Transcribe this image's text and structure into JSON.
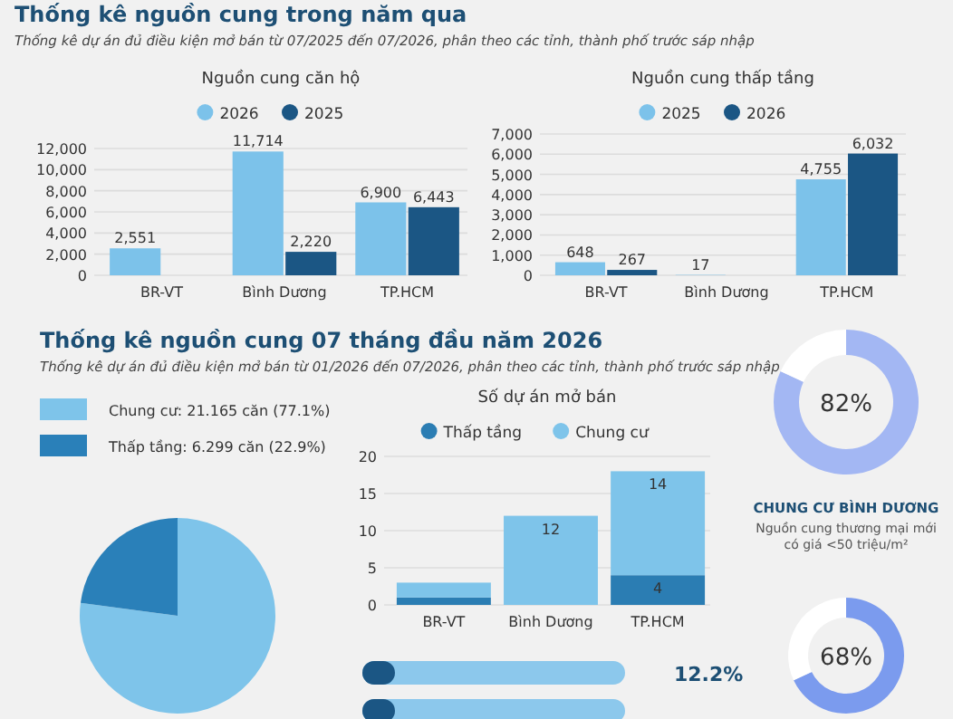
{
  "chart_data": [
    {
      "type": "bar",
      "title": "Nguồn cung căn hộ",
      "annotations": [
        "Thống kê nguồn cung trong năm qua",
        "Thống kê dự án đủ điều kiện mở bán từ 07/2025 đến 07/2026, phân theo các tỉnh, thành phố trước sáp nhập"
      ],
      "categories": [
        "BR-VT",
        "Bình Dương",
        "TP.HCM"
      ],
      "series": [
        {
          "name": "2026",
          "color": "#7cc2ea",
          "values": [
            2551,
            11714,
            6900
          ],
          "value_labels": [
            "2,551",
            "11,714",
            "6,900"
          ]
        },
        {
          "name": "2025",
          "color": "#1b5684",
          "values": [
            null,
            2220,
            6443
          ],
          "value_labels": [
            null,
            "2,220",
            "6,443"
          ]
        }
      ],
      "ylim": [
        0,
        12000
      ],
      "yticks": [
        0,
        {
          "value": 2000,
          "label": "2,000"
        },
        {
          "value": 4000,
          "label": "4,000"
        },
        {
          "value": 6000,
          "label": "6,000"
        },
        {
          "value": 8000,
          "label": "8,000"
        },
        {
          "value": 10000,
          "label": "10,000"
        },
        {
          "value": 12000,
          "label": "12,000"
        }
      ],
      "grid": "y",
      "legend": "top"
    },
    {
      "type": "bar",
      "title": "Nguồn cung thấp tầng",
      "categories": [
        "BR-VT",
        "Bình Dương",
        "TP.HCM"
      ],
      "series": [
        {
          "name": "2025",
          "color": "#7cc2ea",
          "values": [
            648,
            17,
            4755
          ],
          "value_labels": [
            "648",
            "17",
            "4,755"
          ]
        },
        {
          "name": "2026",
          "color": "#1b5684",
          "values": [
            267,
            null,
            6032
          ],
          "value_labels": [
            "267",
            null,
            "6,032"
          ]
        }
      ],
      "ylim": [
        0,
        7000
      ],
      "yticks": [
        0,
        {
          "value": 1000,
          "label": "1,000"
        },
        {
          "value": 2000,
          "label": "2,000"
        },
        {
          "value": 3000,
          "label": "3,000"
        },
        {
          "value": 4000,
          "label": "4,000"
        },
        {
          "value": 5000,
          "label": "5,000"
        },
        {
          "value": 6000,
          "label": "6,000"
        },
        {
          "value": 7000,
          "label": "7,000"
        }
      ],
      "grid": "y",
      "legend": "top"
    },
    {
      "type": "pie",
      "annotations": [
        "Thống kê nguồn cung 07 tháng đầu năm 2026",
        "Thống kê dự án đủ điều kiện mở bán từ 01/2026 đến 07/2026, phân theo các tỉnh, thành phố trước sáp nhập"
      ],
      "categories": [
        "Chung cư: 21.165 căn (77.1%)",
        "Thấp tầng: 6.299 căn (22.9%)"
      ],
      "values": [
        77.1,
        22.9
      ],
      "colors": [
        "#7ec4ea",
        "#2a80b9"
      ],
      "legend": "top"
    },
    {
      "type": "bar",
      "stacked": true,
      "title": "Số dự án mở bán",
      "categories": [
        "BR-VT",
        "Bình Dương",
        "TP.HCM"
      ],
      "series": [
        {
          "name": "Thấp tầng",
          "color": "#2b7db3",
          "values": [
            1,
            null,
            4
          ],
          "value_labels": [
            null,
            null,
            "4"
          ]
        },
        {
          "name": "Chung cư",
          "color": "#7ec4ea",
          "values": [
            2,
            12,
            14
          ],
          "value_labels": [
            null,
            "12",
            "14"
          ]
        }
      ],
      "ylim": [
        0,
        20
      ],
      "yticks": [
        0,
        5,
        10,
        15,
        20
      ],
      "grid": "y",
      "legend": "top"
    },
    {
      "type": "donut",
      "title": "CHUNG CƯ BÌNH DƯƠNG",
      "subtitle": "Nguồn cung thương mại mới có giá <50 triệu/m²",
      "categories": [
        null,
        null
      ],
      "values": [
        82,
        18
      ],
      "colors": [
        "#a3b7f3",
        "#ffffff"
      ],
      "value_labels": [
        "82%",
        null
      ]
    },
    {
      "type": "donut",
      "categories": [
        null,
        null
      ],
      "values": [
        68,
        32
      ],
      "colors": [
        "#7b9bee",
        "#ffffff"
      ],
      "value_labels": [
        "68%",
        null
      ]
    },
    {
      "type": "other",
      "annotations": [
        "12.2%"
      ]
    }
  ]
}
